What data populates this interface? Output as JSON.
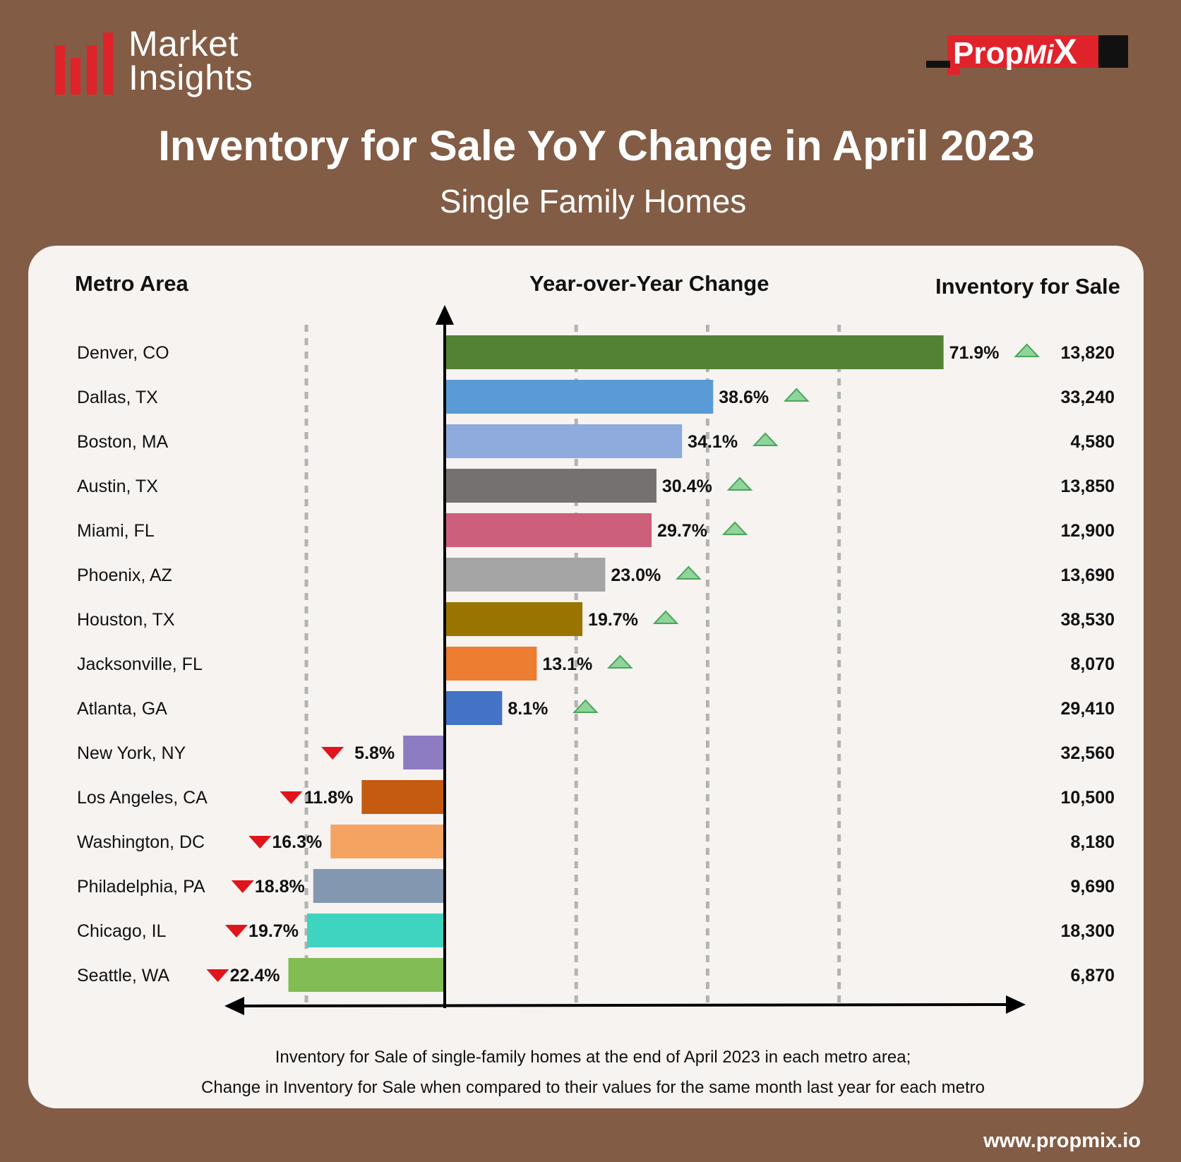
{
  "header": {
    "logo_line1": "Market",
    "logo_line2": "Insights",
    "brand_prefix": "Prop",
    "brand_mi": "Mi",
    "brand_x": "X"
  },
  "title": "Inventory for Sale YoY Change in April 2023",
  "subtitle": "Single Family Homes",
  "columns": {
    "metro": "Metro Area",
    "change": "Year-over-Year Change",
    "inventory": "Inventory for Sale"
  },
  "caption_line1": "Inventory for Sale of single-family homes at the end of April 2023 in each metro area;",
  "caption_line2": "Change in Inventory for Sale when compared to their values for the same month last year for each metro",
  "website": "www.propmix.io",
  "colors": {
    "background": "#825c45",
    "logo_red": "#e0232b",
    "up_marker": "#8fd49a",
    "down_marker": "#e0141b"
  },
  "chart_data": {
    "type": "bar",
    "orientation": "horizontal",
    "categories": [
      "Denver, CO",
      "Dallas, TX",
      "Boston, MA",
      "Austin, TX",
      "Miami, FL",
      "Phoenix, AZ",
      "Houston, TX",
      "Jacksonville, FL",
      "Atlanta, GA",
      "New York, NY",
      "Los Angeles, CA",
      "Washington, DC",
      "Philadelphia, PA",
      "Chicago, IL",
      "Seattle, WA"
    ],
    "values": [
      71.9,
      38.6,
      34.1,
      30.4,
      29.7,
      23.0,
      19.7,
      13.1,
      8.1,
      -5.8,
      -11.8,
      -16.3,
      -18.8,
      -19.7,
      -22.4
    ],
    "value_labels": [
      "71.9%",
      "38.6%",
      "34.1%",
      "30.4%",
      "29.7%",
      "23.0%",
      "19.7%",
      "13.1%",
      "8.1%",
      "5.8%",
      "11.8%",
      "16.3%",
      "18.8%",
      "19.7%",
      "22.4%"
    ],
    "directions": [
      "up",
      "up",
      "up",
      "up",
      "up",
      "up",
      "up",
      "up",
      "up",
      "down",
      "down",
      "down",
      "down",
      "down",
      "down"
    ],
    "inventory": [
      "13,820",
      "33,240",
      "4,580",
      "13,850",
      "12,900",
      "13,690",
      "38,530",
      "8,070",
      "29,410",
      "32,560",
      "10,500",
      "8,180",
      "9,690",
      "18,300",
      "6,870"
    ],
    "bar_colors": [
      "#548235",
      "#5b9bd5",
      "#8faadc",
      "#767171",
      "#cc5f7a",
      "#a5a5a5",
      "#9a7400",
      "#ed7d31",
      "#4472c4",
      "#8e7cc3",
      "#c55a11",
      "#f4a460",
      "#8497b0",
      "#3fd4bf",
      "#82bc55"
    ],
    "xlabel": "Year-over-Year Change",
    "grid": "dashed vertical lines",
    "legend": "none"
  }
}
